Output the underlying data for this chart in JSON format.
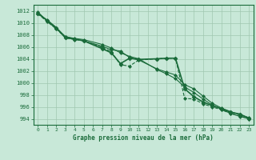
{
  "title": "Graphe pression niveau de la mer (hPa)",
  "background_color": "#c8e8d8",
  "grid_color": "#a0c8b0",
  "line_color": "#1a6b3a",
  "xlim": [
    -0.5,
    23.5
  ],
  "ylim": [
    993.0,
    1013.0
  ],
  "yticks": [
    994,
    996,
    998,
    1000,
    1002,
    1004,
    1006,
    1008,
    1010,
    1012
  ],
  "xtick_labels": [
    "0",
    "1",
    "2",
    "3",
    "4",
    "5",
    "",
    "7",
    "8",
    "9",
    "1011",
    "",
    "13",
    "1415",
    "16",
    "17",
    "18",
    "19",
    "20",
    "21",
    "2223"
  ],
  "lines": [
    {
      "x": [
        0,
        1,
        2,
        3,
        4,
        5,
        7,
        8,
        9,
        10,
        11,
        13,
        14,
        15,
        16,
        17,
        18,
        19,
        20,
        21,
        22,
        23
      ],
      "y": [
        1011.5,
        1010.5,
        1009.2,
        1007.7,
        1007.3,
        1007.0,
        1006.1,
        1005.5,
        1005.3,
        1004.2,
        1003.8,
        1002.3,
        1001.8,
        1001.3,
        999.7,
        999.0,
        997.8,
        996.6,
        995.8,
        995.2,
        994.7,
        994.2
      ],
      "marker": "D",
      "ms": 2.0,
      "lw": 0.8,
      "style": "solid"
    },
    {
      "x": [
        0,
        1,
        2,
        3,
        4,
        5,
        7,
        8,
        9,
        10,
        11,
        13,
        14,
        15,
        16,
        17,
        18,
        19,
        20,
        21,
        22,
        23
      ],
      "y": [
        1011.8,
        1010.3,
        1009.0,
        1007.7,
        1007.4,
        1007.2,
        1006.4,
        1005.8,
        1005.0,
        1004.4,
        1004.0,
        1002.2,
        1001.5,
        1000.7,
        999.3,
        998.4,
        997.3,
        996.3,
        995.6,
        994.9,
        994.4,
        994.0
      ],
      "marker": "D",
      "ms": 2.0,
      "lw": 0.8,
      "style": "solid"
    },
    {
      "x": [
        0,
        1,
        2,
        3,
        4,
        5,
        7,
        8,
        9,
        10,
        11,
        13,
        14,
        15,
        16,
        17,
        18,
        19,
        20,
        21,
        22,
        23
      ],
      "y": [
        1011.6,
        1010.4,
        1009.2,
        1007.5,
        1007.3,
        1007.0,
        1005.7,
        1005.0,
        1003.2,
        1004.1,
        1003.9,
        1004.0,
        1004.1,
        1004.1,
        999.0,
        997.7,
        996.8,
        996.2,
        995.7,
        995.1,
        994.8,
        994.1
      ],
      "marker": "D",
      "ms": 2.5,
      "lw": 1.2,
      "style": "solid"
    },
    {
      "x": [
        0,
        1,
        2,
        3,
        4,
        5,
        7,
        8,
        9,
        10,
        11,
        13,
        14,
        15,
        16,
        17,
        18,
        19,
        20,
        21,
        22,
        23
      ],
      "y": [
        1011.5,
        1010.2,
        1009.0,
        1007.5,
        1007.2,
        1007.0,
        1005.9,
        1005.2,
        1003.0,
        1002.8,
        1003.8,
        1004.0,
        1004.1,
        1004.1,
        997.4,
        997.3,
        996.5,
        996.0,
        995.5,
        994.9,
        994.5,
        994.0
      ],
      "marker": "D",
      "ms": 2.0,
      "lw": 0.8,
      "style": "dashed"
    }
  ]
}
